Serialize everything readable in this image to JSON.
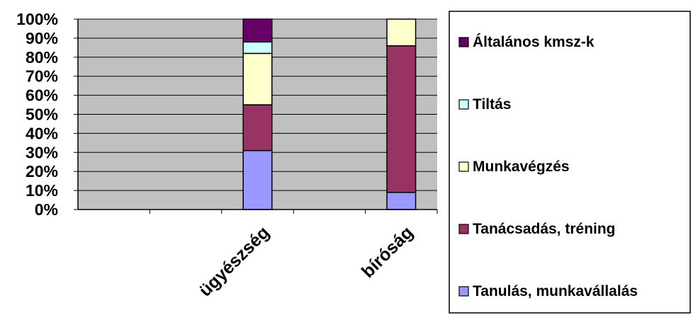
{
  "chart_data": {
    "type": "bar",
    "stacked": true,
    "percent_stacked": true,
    "categories": [
      "ügyészség",
      "bíróság"
    ],
    "category_slots": 5,
    "category_positions": [
      2,
      4
    ],
    "series": [
      {
        "name": "Tanulás, munkavállalás",
        "color": "#9999ff",
        "values": [
          31,
          9
        ]
      },
      {
        "name": "Tanácsadás, tréning",
        "color": "#993366",
        "values": [
          24,
          77
        ]
      },
      {
        "name": "Munkavégzés",
        "color": "#ffffcc",
        "values": [
          27,
          14
        ]
      },
      {
        "name": "Tiltás",
        "color": "#ccffff",
        "values": [
          6,
          0
        ]
      },
      {
        "name": "Általános kmsz-k",
        "color": "#660066",
        "values": [
          12,
          0
        ]
      }
    ],
    "y_ticks": [
      "0%",
      "10%",
      "20%",
      "30%",
      "40%",
      "50%",
      "60%",
      "70%",
      "80%",
      "90%",
      "100%"
    ],
    "ylim": [
      0,
      100
    ],
    "grid": true,
    "plot_background": "#c0c0c0",
    "legend_position": "right",
    "legend_order": [
      4,
      3,
      2,
      1,
      0
    ]
  }
}
